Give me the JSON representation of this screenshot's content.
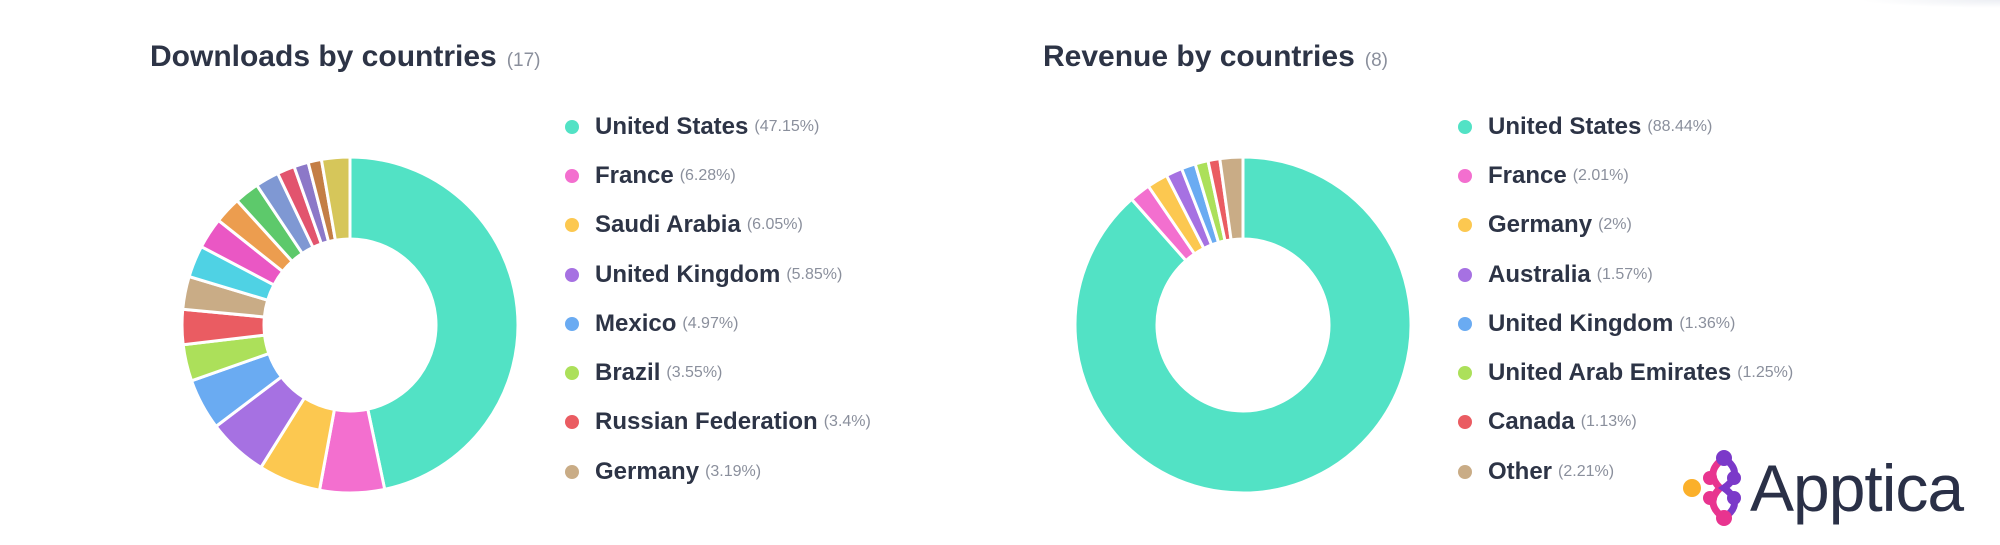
{
  "chart_data": [
    {
      "type": "pie",
      "title": "Downloads by countries",
      "count": "(17)",
      "slices": [
        {
          "label": "United States",
          "pct_label": "(47.15%)",
          "value": 47.15,
          "color": "#52e2c5"
        },
        {
          "label": "France",
          "pct_label": "(6.28%)",
          "value": 6.28,
          "color": "#f36fcf"
        },
        {
          "label": "Saudi Arabia",
          "pct_label": "(6.05%)",
          "value": 6.05,
          "color": "#fcc850"
        },
        {
          "label": "United Kingdom",
          "pct_label": "(5.85%)",
          "value": 5.85,
          "color": "#a671e2"
        },
        {
          "label": "Mexico",
          "pct_label": "(4.97%)",
          "value": 4.97,
          "color": "#6aabf2"
        },
        {
          "label": "Brazil",
          "pct_label": "(3.55%)",
          "value": 3.55,
          "color": "#ace05a"
        },
        {
          "label": "Russian Federation",
          "pct_label": "(3.4%)",
          "value": 3.4,
          "color": "#ea5c62"
        },
        {
          "label": "Germany",
          "pct_label": "(3.19%)",
          "value": 3.19,
          "color": "#c9ac86"
        }
      ],
      "extra_slices": [
        {
          "value": 3.1,
          "color": "#4fd2e4"
        },
        {
          "value": 3.0,
          "color": "#ea57c4"
        },
        {
          "value": 2.6,
          "color": "#ec9d4f"
        },
        {
          "value": 2.4,
          "color": "#5dc96b"
        },
        {
          "value": 2.3,
          "color": "#7f98d3"
        },
        {
          "value": 1.7,
          "color": "#e2546e"
        },
        {
          "value": 1.4,
          "color": "#8c78c8"
        },
        {
          "value": 1.3,
          "color": "#c47e45"
        },
        {
          "value": 2.75,
          "color": "#d6c65a"
        }
      ]
    },
    {
      "type": "pie",
      "title": "Revenue by countries",
      "count": "(8)",
      "slices": [
        {
          "label": "United States",
          "pct_label": "(88.44%)",
          "value": 88.44,
          "color": "#52e2c5"
        },
        {
          "label": "France",
          "pct_label": "(2.01%)",
          "value": 2.01,
          "color": "#f36fcf"
        },
        {
          "label": "Germany",
          "pct_label": "(2%)",
          "value": 2.0,
          "color": "#fcc850"
        },
        {
          "label": "Australia",
          "pct_label": "(1.57%)",
          "value": 1.57,
          "color": "#a671e2"
        },
        {
          "label": "United Kingdom",
          "pct_label": "(1.36%)",
          "value": 1.36,
          "color": "#6aabf2"
        },
        {
          "label": "United Arab Emirates",
          "pct_label": "(1.25%)",
          "value": 1.25,
          "color": "#ace05a"
        },
        {
          "label": "Canada",
          "pct_label": "(1.13%)",
          "value": 1.13,
          "color": "#ea5c62"
        },
        {
          "label": "Other",
          "pct_label": "(2.21%)",
          "value": 2.21,
          "color": "#c9ac86"
        }
      ],
      "extra_slices": []
    }
  ],
  "logo": {
    "text": "Apptica",
    "colors": {
      "pink": "#e8348f",
      "purple": "#7b39c9",
      "orange": "#fbb02a"
    }
  }
}
